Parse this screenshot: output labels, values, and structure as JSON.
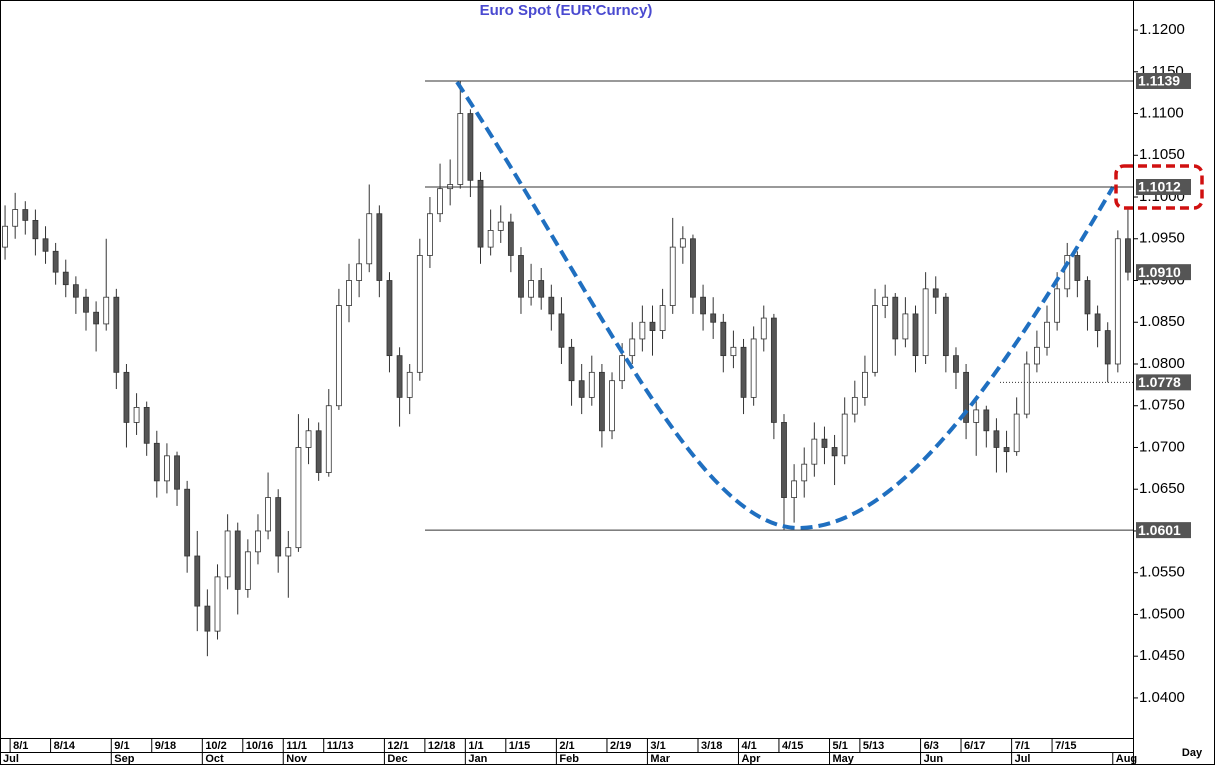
{
  "chart_data": {
    "type": "candlestick",
    "title": "Euro  Spot  (EUR'Curncy)",
    "x_label": "Day",
    "ylim": [
      1.0352,
      1.1236
    ],
    "yticks": [
      {
        "value": 1.04,
        "label": "1.0400"
      },
      {
        "value": 1.045,
        "label": "1.0450"
      },
      {
        "value": 1.05,
        "label": "1.0500"
      },
      {
        "value": 1.055,
        "label": "1.0550"
      },
      {
        "value": 1.06,
        "label": "1.0600"
      },
      {
        "value": 1.065,
        "label": "1.0650"
      },
      {
        "value": 1.07,
        "label": "1.0700"
      },
      {
        "value": 1.075,
        "label": "1.0750"
      },
      {
        "value": 1.08,
        "label": "1.0800"
      },
      {
        "value": 1.085,
        "label": "1.0850"
      },
      {
        "value": 1.09,
        "label": "1.0900"
      },
      {
        "value": 1.095,
        "label": "1.0950"
      },
      {
        "value": 1.1,
        "label": "1.1000"
      },
      {
        "value": 1.105,
        "label": "1.1050"
      },
      {
        "value": 1.11,
        "label": "1.1100"
      },
      {
        "value": 1.115,
        "label": "1.1150"
      },
      {
        "value": 1.12,
        "label": "1.1200"
      }
    ],
    "levels": [
      {
        "value": 1.1139,
        "label": "1.1139",
        "line": "solid"
      },
      {
        "value": 1.1012,
        "label": "1.1012",
        "line": "solid"
      },
      {
        "value": 1.091,
        "label": "1.0910",
        "line": "none"
      },
      {
        "value": 1.0778,
        "label": "1.0778",
        "line": "dotted"
      },
      {
        "value": 1.0601,
        "label": "1.0601",
        "line": "solid"
      }
    ],
    "up_color": "#ffffff",
    "down_color": "#555555",
    "categories": [
      null,
      "8/1",
      null,
      null,
      null,
      "8/14",
      null,
      null,
      null,
      null,
      null,
      "9/1",
      null,
      null,
      null,
      "9/18",
      null,
      null,
      null,
      null,
      "10/2",
      null,
      null,
      null,
      "10/16",
      null,
      null,
      null,
      "11/1",
      null,
      null,
      null,
      "11/13",
      null,
      null,
      null,
      null,
      null,
      "12/1",
      null,
      null,
      null,
      "12/18",
      null,
      null,
      null,
      "1/1",
      null,
      null,
      null,
      "1/15",
      null,
      null,
      null,
      null,
      "2/1",
      null,
      null,
      null,
      null,
      "2/19",
      null,
      null,
      null,
      "3/1",
      null,
      null,
      null,
      null,
      "3/18",
      null,
      null,
      null,
      "4/1",
      null,
      null,
      null,
      "4/15",
      null,
      null,
      null,
      null,
      "5/1",
      null,
      null,
      "5/13",
      null,
      null,
      null,
      null,
      null,
      "6/3",
      null,
      null,
      null,
      "6/17",
      null,
      null,
      null,
      null,
      "7/1",
      null,
      null,
      null,
      "7/15",
      null,
      null,
      null,
      null,
      null,
      null,
      null
    ],
    "months": [
      "Jul",
      null,
      null,
      null,
      null,
      null,
      null,
      null,
      null,
      null,
      null,
      "Sep",
      null,
      null,
      null,
      null,
      null,
      null,
      null,
      null,
      "Oct",
      null,
      null,
      null,
      null,
      null,
      null,
      null,
      "Nov",
      null,
      null,
      null,
      null,
      null,
      null,
      null,
      null,
      null,
      "Dec",
      null,
      null,
      null,
      null,
      null,
      null,
      null,
      "Jan",
      null,
      null,
      null,
      null,
      null,
      null,
      null,
      null,
      "Feb",
      null,
      null,
      null,
      null,
      null,
      null,
      null,
      null,
      "Mar",
      null,
      null,
      null,
      null,
      null,
      null,
      null,
      null,
      "Apr",
      null,
      null,
      null,
      null,
      null,
      null,
      null,
      null,
      "May",
      null,
      null,
      null,
      null,
      null,
      null,
      null,
      null,
      "Jun",
      null,
      null,
      null,
      null,
      null,
      null,
      null,
      null,
      "Jul",
      null,
      null,
      null,
      null,
      null,
      null,
      null,
      null,
      null,
      "Aug",
      null
    ],
    "ohlc": [
      [
        1.094,
        1.099,
        1.0925,
        1.0965
      ],
      [
        1.0965,
        1.1005,
        1.095,
        1.0985
      ],
      [
        1.0985,
        1.0995,
        1.0955,
        1.0972
      ],
      [
        1.0972,
        1.0985,
        1.093,
        1.095
      ],
      [
        1.095,
        1.0965,
        1.092,
        1.0935
      ],
      [
        1.0935,
        1.0945,
        1.0895,
        1.091
      ],
      [
        1.091,
        1.0925,
        1.088,
        1.0895
      ],
      [
        1.0895,
        1.0905,
        1.086,
        1.088
      ],
      [
        1.088,
        1.089,
        1.084,
        1.0862
      ],
      [
        1.0862,
        1.0875,
        1.0815,
        1.0848
      ],
      [
        1.0848,
        1.095,
        1.084,
        1.088
      ],
      [
        1.088,
        1.089,
        1.077,
        1.079
      ],
      [
        1.079,
        1.08,
        1.07,
        1.073
      ],
      [
        1.073,
        1.0765,
        1.0715,
        1.0748
      ],
      [
        1.0748,
        1.0755,
        1.069,
        1.0705
      ],
      [
        1.0705,
        1.072,
        1.064,
        1.066
      ],
      [
        1.066,
        1.0705,
        1.0645,
        1.069
      ],
      [
        1.069,
        1.0695,
        1.063,
        1.065
      ],
      [
        1.065,
        1.066,
        1.055,
        1.057
      ],
      [
        1.057,
        1.06,
        1.048,
        1.051
      ],
      [
        1.051,
        1.053,
        1.045,
        1.048
      ],
      [
        1.048,
        1.056,
        1.047,
        1.0545
      ],
      [
        1.0545,
        1.062,
        1.053,
        1.06
      ],
      [
        1.06,
        1.061,
        1.05,
        1.053
      ],
      [
        1.053,
        1.059,
        1.052,
        1.0575
      ],
      [
        1.0575,
        1.062,
        1.056,
        1.06
      ],
      [
        1.06,
        1.067,
        1.059,
        1.064
      ],
      [
        1.064,
        1.065,
        1.055,
        1.057
      ],
      [
        1.057,
        1.06,
        1.052,
        1.058
      ],
      [
        1.058,
        1.074,
        1.0575,
        1.07
      ],
      [
        1.07,
        1.0735,
        1.068,
        1.072
      ],
      [
        1.072,
        1.073,
        1.066,
        1.067
      ],
      [
        1.067,
        1.077,
        1.0665,
        1.075
      ],
      [
        1.075,
        1.089,
        1.0745,
        1.087
      ],
      [
        1.087,
        1.092,
        1.085,
        1.09
      ],
      [
        1.09,
        1.095,
        1.088,
        1.092
      ],
      [
        1.092,
        1.1015,
        1.091,
        1.098
      ],
      [
        1.098,
        1.099,
        1.088,
        1.09
      ],
      [
        1.09,
        1.091,
        1.079,
        1.081
      ],
      [
        1.081,
        1.082,
        1.0725,
        1.076
      ],
      [
        1.076,
        1.08,
        1.074,
        1.079
      ],
      [
        1.079,
        1.095,
        1.078,
        1.093
      ],
      [
        1.093,
        1.1,
        1.0915,
        1.098
      ],
      [
        1.098,
        1.104,
        1.097,
        1.101
      ],
      [
        1.101,
        1.1045,
        1.099,
        1.1015
      ],
      [
        1.1015,
        1.1139,
        1.101,
        1.11
      ],
      [
        1.11,
        1.1105,
        1.1,
        1.102
      ],
      [
        1.102,
        1.103,
        1.092,
        1.094
      ],
      [
        1.094,
        1.0985,
        1.093,
        1.096
      ],
      [
        1.096,
        1.099,
        1.0945,
        1.097
      ],
      [
        1.097,
        1.098,
        1.091,
        1.093
      ],
      [
        1.093,
        1.094,
        1.086,
        1.088
      ],
      [
        1.088,
        1.092,
        1.087,
        1.09
      ],
      [
        1.09,
        1.0915,
        1.0865,
        1.088
      ],
      [
        1.088,
        1.0895,
        1.084,
        1.086
      ],
      [
        1.086,
        1.088,
        1.08,
        1.082
      ],
      [
        1.082,
        1.083,
        1.075,
        1.078
      ],
      [
        1.078,
        1.08,
        1.074,
        1.076
      ],
      [
        1.076,
        1.081,
        1.075,
        1.079
      ],
      [
        1.079,
        1.08,
        1.07,
        1.072
      ],
      [
        1.072,
        1.079,
        1.071,
        1.078
      ],
      [
        1.078,
        1.0825,
        1.077,
        1.081
      ],
      [
        1.081,
        1.085,
        1.08,
        1.083
      ],
      [
        1.083,
        1.087,
        1.0815,
        1.085
      ],
      [
        1.085,
        1.087,
        1.081,
        1.084
      ],
      [
        1.084,
        1.089,
        1.083,
        1.087
      ],
      [
        1.087,
        1.0975,
        1.086,
        1.094
      ],
      [
        1.094,
        1.0965,
        1.092,
        1.095
      ],
      [
        1.095,
        1.0955,
        1.086,
        1.088
      ],
      [
        1.088,
        1.0895,
        1.084,
        1.086
      ],
      [
        1.086,
        1.088,
        1.083,
        1.085
      ],
      [
        1.085,
        1.086,
        1.079,
        1.081
      ],
      [
        1.081,
        1.084,
        1.0795,
        1.082
      ],
      [
        1.082,
        1.083,
        1.074,
        1.076
      ],
      [
        1.076,
        1.0845,
        1.075,
        1.083
      ],
      [
        1.083,
        1.087,
        1.0815,
        1.0855
      ],
      [
        1.0855,
        1.086,
        1.071,
        1.073
      ],
      [
        1.073,
        1.074,
        1.0601,
        1.064
      ],
      [
        1.064,
        1.068,
        1.061,
        1.066
      ],
      [
        1.066,
        1.07,
        1.064,
        1.068
      ],
      [
        1.068,
        1.073,
        1.0665,
        1.071
      ],
      [
        1.071,
        1.0725,
        1.068,
        1.07
      ],
      [
        1.07,
        1.0715,
        1.0655,
        1.069
      ],
      [
        1.069,
        1.076,
        1.068,
        1.074
      ],
      [
        1.074,
        1.078,
        1.073,
        1.076
      ],
      [
        1.076,
        1.081,
        1.075,
        1.079
      ],
      [
        1.079,
        1.089,
        1.0785,
        1.087
      ],
      [
        1.087,
        1.0895,
        1.0855,
        1.088
      ],
      [
        1.088,
        1.0885,
        1.081,
        1.083
      ],
      [
        1.083,
        1.088,
        1.082,
        1.086
      ],
      [
        1.086,
        1.087,
        1.079,
        1.081
      ],
      [
        1.081,
        1.091,
        1.08,
        1.089
      ],
      [
        1.089,
        1.0905,
        1.086,
        1.088
      ],
      [
        1.088,
        1.0885,
        1.079,
        1.081
      ],
      [
        1.081,
        1.082,
        1.077,
        1.079
      ],
      [
        1.079,
        1.08,
        1.071,
        1.073
      ],
      [
        1.073,
        1.076,
        1.069,
        1.0745
      ],
      [
        1.0745,
        1.075,
        1.07,
        1.072
      ],
      [
        1.072,
        1.0735,
        1.067,
        1.07
      ],
      [
        1.07,
        1.072,
        1.067,
        1.0695
      ],
      [
        1.0695,
        1.076,
        1.069,
        1.074
      ],
      [
        1.074,
        1.0815,
        1.0735,
        1.08
      ],
      [
        1.08,
        1.084,
        1.079,
        1.082
      ],
      [
        1.082,
        1.087,
        1.081,
        1.085
      ],
      [
        1.085,
        1.091,
        1.084,
        1.089
      ],
      [
        1.089,
        1.0945,
        1.088,
        1.093
      ],
      [
        1.093,
        1.0935,
        1.088,
        1.09
      ],
      [
        1.09,
        1.0905,
        1.084,
        1.086
      ],
      [
        1.086,
        1.087,
        1.082,
        1.084
      ],
      [
        1.084,
        1.085,
        1.0778,
        1.08
      ],
      [
        1.08,
        1.096,
        1.079,
        1.095
      ],
      [
        1.095,
        1.0985,
        1.09,
        1.091
      ]
    ]
  }
}
